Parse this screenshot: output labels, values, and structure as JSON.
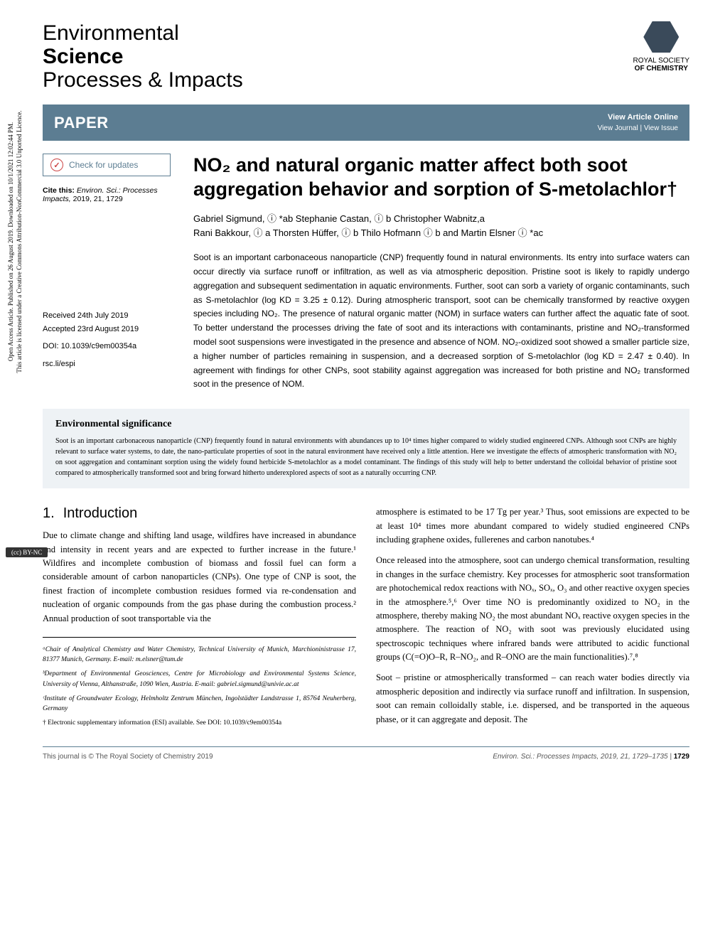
{
  "colors": {
    "bar_bg": "#5c7d92",
    "bar_text": "#ffffff",
    "env_sig_bg": "#eef2f5",
    "text": "#000000",
    "page_bg": "#ffffff",
    "orcid_green": "#a6ce39"
  },
  "fonts": {
    "serif": "Georgia",
    "sans": "Arial",
    "title_size_pt": 27,
    "body_size_pt": 12.5,
    "abstract_size_pt": 12,
    "affil_size_pt": 9.5
  },
  "journal": {
    "line1": "Environmental",
    "line2_bold": "Science",
    "line3": "Processes & Impacts"
  },
  "rsc": {
    "top": "ROYAL SOCIETY",
    "bottom": "OF CHEMISTRY"
  },
  "paper_bar": {
    "label": "PAPER",
    "view_article": "View Article Online",
    "view_sub": "View Journal | View Issue"
  },
  "check_updates": "Check for updates",
  "cite": {
    "prefix": "Cite this:",
    "journal": "Environ. Sci.: Processes Impacts,",
    "yvp": "2019, 21, 1729"
  },
  "meta": {
    "received": "Received 24th July 2019",
    "accepted": "Accepted 23rd August 2019",
    "doi": "DOI: 10.1039/c9em00354a",
    "short": "rsc.li/espi"
  },
  "title": "NO₂ and natural organic matter affect both soot aggregation behavior and sorption of S-metolachlor†",
  "authors": {
    "line1": "Gabriel Sigmund, ⓘ *ab Stephanie Castan, ⓘ b Christopher Wabnitz,a",
    "line2": "Rani Bakkour, ⓘ a Thorsten Hüffer, ⓘ b Thilo Hofmann ⓘ b and Martin Elsner ⓘ *ac"
  },
  "abstract": "Soot is an important carbonaceous nanoparticle (CNP) frequently found in natural environments. Its entry into surface waters can occur directly via surface runoff or infiltration, as well as via atmospheric deposition. Pristine soot is likely to rapidly undergo aggregation and subsequent sedimentation in aquatic environments. Further, soot can sorb a variety of organic contaminants, such as S-metolachlor (log KD = 3.25 ± 0.12). During atmospheric transport, soot can be chemically transformed by reactive oxygen species including NO₂. The presence of natural organic matter (NOM) in surface waters can further affect the aquatic fate of soot. To better understand the processes driving the fate of soot and its interactions with contaminants, pristine and NO₂-transformed model soot suspensions were investigated in the presence and absence of NOM. NO₂-oxidized soot showed a smaller particle size, a higher number of particles remaining in suspension, and a decreased sorption of S-metolachlor (log KD = 2.47 ± 0.40). In agreement with findings for other CNPs, soot stability against aggregation was increased for both pristine and NO₂ transformed soot in the presence of NOM.",
  "env_sig": {
    "heading": "Environmental significance",
    "body": "Soot is an important carbonaceous nanoparticle (CNP) frequently found in natural environments with abundances up to 10⁴ times higher compared to widely studied engineered CNPs. Although soot CNPs are highly relevant to surface water systems, to date, the nano-particulate properties of soot in the natural environment have received only a little attention. Here we investigate the effects of atmospheric transformation with NO₂ on soot aggregation and contaminant sorption using the widely found herbicide S-metolachlor as a model contaminant. The findings of this study will help to better understand the colloidal behavior of pristine soot compared to atmospherically transformed soot and bring forward hitherto underexplored aspects of soot as a naturally occurring CNP."
  },
  "section1": {
    "num": "1.",
    "title": "Introduction"
  },
  "body": {
    "p1": "Due to climate change and shifting land usage, wildfires have increased in abundance and intensity in recent years and are expected to further increase in the future.¹ Wildfires and incomplete combustion of biomass and fossil fuel can form a considerable amount of carbon nanoparticles (CNPs). One type of CNP is soot, the finest fraction of incomplete combustion residues formed via re-condensation and nucleation of organic compounds from the gas phase during the combustion process.² Annual production of soot transportable via the",
    "p2": "atmosphere is estimated to be 17 Tg per year.³ Thus, soot emissions are expected to be at least 10⁴ times more abundant compared to widely studied engineered CNPs including graphene oxides, fullerenes and carbon nanotubes.⁴",
    "p3": "Once released into the atmosphere, soot can undergo chemical transformation, resulting in changes in the surface chemistry. Key processes for atmospheric soot transformation are photochemical redox reactions with NOₓ, SOₓ, O₃ and other reactive oxygen species in the atmosphere.⁵,⁶ Over time NO is predominantly oxidized to NO₂ in the atmosphere, thereby making NO₂ the most abundant NOₓ reactive oxygen species in the atmosphere. The reaction of NO₂ with soot was previously elucidated using spectroscopic techniques where infrared bands were attributed to acidic functional groups (C(=O)O–R, R–NO₂, and R–ONO are the main functionalities).⁷,⁸",
    "p4": "Soot – pristine or atmospherically transformed – can reach water bodies directly via atmospheric deposition and indirectly via surface runoff and infiltration. In suspension, soot can remain colloidally stable, i.e. dispersed, and be transported in the aqueous phase, or it can aggregate and deposit. The"
  },
  "affils": {
    "a": "ᵃChair of Analytical Chemistry and Water Chemistry, Technical University of Munich, Marchioninistrasse 17, 81377 Munich, Germany. E-mail: m.elsner@tum.de",
    "b": "ᵇDepartment of Environmental Geosciences, Centre for Microbiology and Environmental Systems Science, University of Vienna, Althanstraße, 1090 Wien, Austria. E-mail: gabriel.sigmund@univie.ac.at",
    "c": "ᶜInstitute of Groundwater Ecology, Helmholtz Zentrum München, Ingolstädter Landstrasse 1, 85764 Neuherberg, Germany",
    "esi": "† Electronic supplementary information (ESI) available. See DOI: 10.1039/c9em00354a"
  },
  "footer": {
    "left": "This journal is © The Royal Society of Chemistry 2019",
    "right_cite": "Environ. Sci.: Processes Impacts, 2019, 21, 1729–1735 |",
    "page": "1729"
  },
  "side": {
    "line1": "Open Access Article. Published on 26 August 2019. Downloaded on 10/1/2021 12:02:44 PM.",
    "line2": "This article is licensed under a Creative Commons Attribution-NonCommercial 3.0 Unported Licence.",
    "badge": "(cc) BY-NC"
  }
}
